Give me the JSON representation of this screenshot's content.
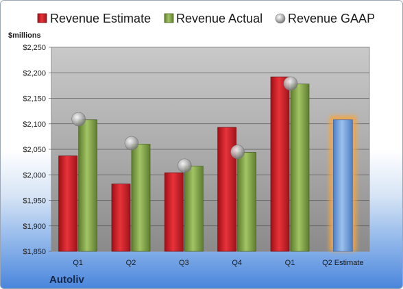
{
  "company": "Autoliv",
  "colors": {
    "estimate": "#d41f26",
    "actual": "#86a94a",
    "gaap": "#9a9a9a",
    "forecast": "#6f9fd8",
    "forecast_glow": "#f5a540"
  },
  "chart_data": {
    "type": "bar",
    "unit_label": "$millions",
    "categories": [
      "Q1",
      "Q2",
      "Q3",
      "Q4",
      "Q1",
      "Q2 Estimate"
    ],
    "ylim": [
      1850,
      2250
    ],
    "yticks": [
      "$1,850",
      "$1,900",
      "$1,950",
      "$2,000",
      "$2,050",
      "$2,100",
      "$2,150",
      "$2,200",
      "$2,250"
    ],
    "ytick_values": [
      1850,
      1900,
      1950,
      2000,
      2050,
      2100,
      2150,
      2200,
      2250
    ],
    "grid": true,
    "legend_position": "top",
    "series": [
      {
        "name": "Revenue Estimate",
        "type": "bar",
        "values": [
          2037,
          1982,
          2004,
          2093,
          2192,
          null
        ]
      },
      {
        "name": "Revenue Actual",
        "type": "bar",
        "values": [
          2108,
          2060,
          2017,
          2044,
          2178,
          null
        ]
      },
      {
        "name": "Revenue GAAP",
        "type": "marker",
        "values": [
          2109,
          2062,
          2018,
          2045,
          2179,
          null
        ]
      }
    ],
    "forecast": {
      "category": "Q2 Estimate",
      "value": 2108
    }
  }
}
